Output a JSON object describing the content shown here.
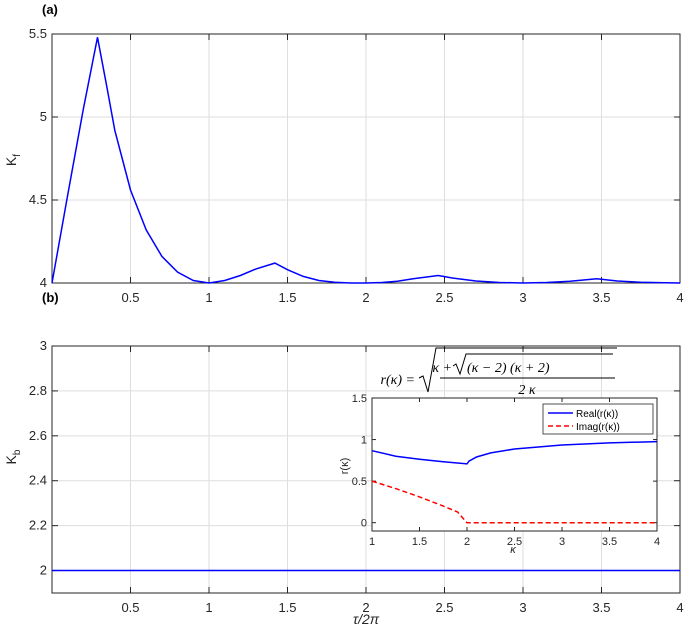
{
  "panel_a": {
    "label": "(a)",
    "chart_data": {
      "type": "line",
      "ylabel": "K",
      "ylabel_sub": "f",
      "xlim": [
        0,
        4
      ],
      "ylim": [
        4,
        5.5
      ],
      "xticks": [
        0.5,
        1,
        1.5,
        2,
        2.5,
        3,
        3.5,
        4
      ],
      "xtick_labels": [
        "0.5",
        "1",
        "1.5",
        "2",
        "2.5",
        "3",
        "3.5",
        "4"
      ],
      "yticks": [
        4,
        4.5,
        5,
        5.5
      ],
      "ytick_labels": [
        "4",
        "4.5",
        "5",
        "5.5"
      ],
      "grid": true,
      "series": [
        {
          "color": "#0000ff",
          "x": [
            0,
            0.1,
            0.2,
            0.29,
            0.35,
            0.4,
            0.5,
            0.6,
            0.7,
            0.8,
            0.9,
            1.0,
            1.1,
            1.2,
            1.3,
            1.42,
            1.5,
            1.6,
            1.7,
            1.8,
            1.9,
            2.0,
            2.1,
            2.2,
            2.3,
            2.46,
            2.55,
            2.7,
            2.85,
            3.0,
            3.15,
            3.3,
            3.47,
            3.6,
            3.75,
            3.9,
            4.0
          ],
          "y": [
            4.0,
            4.53,
            5.05,
            5.48,
            5.18,
            4.92,
            4.56,
            4.32,
            4.16,
            4.065,
            4.015,
            4.0,
            4.015,
            4.045,
            4.085,
            4.12,
            4.08,
            4.04,
            4.015,
            4.004,
            4.0,
            4.0,
            4.003,
            4.01,
            4.025,
            4.045,
            4.03,
            4.012,
            4.003,
            4.0,
            4.003,
            4.01,
            4.025,
            4.012,
            4.004,
            4.001,
            4.0
          ]
        }
      ]
    }
  },
  "panel_b": {
    "label": "(b)",
    "chart_data": {
      "type": "line",
      "ylabel": "K",
      "ylabel_sub": "b",
      "xlabel": "τ/2π",
      "xlim": [
        0,
        4
      ],
      "ylim": [
        1.9,
        3
      ],
      "xticks": [
        0.5,
        1,
        1.5,
        2,
        2.5,
        3,
        3.5,
        4
      ],
      "xtick_labels": [
        "0.5",
        "1",
        "1.5",
        "2",
        "2.5",
        "3",
        "3.5",
        "4"
      ],
      "yticks": [
        2,
        2.2,
        2.4,
        2.6,
        2.8,
        3
      ],
      "ytick_labels": [
        "2",
        "2.2",
        "2.4",
        "2.6",
        "2.8",
        "3"
      ],
      "grid": true,
      "series": [
        {
          "color": "#0000ff",
          "x": [
            0,
            4
          ],
          "y": [
            2,
            2
          ]
        }
      ]
    }
  },
  "inset": {
    "formula_lhs": "r(κ) =",
    "formula_num_a": "κ +",
    "formula_num_b": "(κ − 2) (κ + 2)",
    "formula_den": "2 κ",
    "chart_data": {
      "type": "line",
      "xlabel": "κ",
      "ylabel": "r(κ)",
      "xlim": [
        1,
        4
      ],
      "ylim": [
        -0.1,
        1.5
      ],
      "xticks": [
        1,
        1.5,
        2,
        2.5,
        3,
        3.5,
        4
      ],
      "xtick_labels": [
        "1",
        "1.5",
        "2",
        "2.5",
        "3",
        "3.5",
        "4"
      ],
      "yticks": [
        0,
        0.5,
        1,
        1.5
      ],
      "ytick_labels": [
        "0",
        "0.5",
        "1",
        "1.5"
      ],
      "legend": "top-right",
      "series": [
        {
          "name": "Real(r(κ))",
          "color": "#0000ff",
          "dash": "solid",
          "x": [
            1,
            1.25,
            1.5,
            1.75,
            2,
            2.02,
            2.1,
            2.25,
            2.5,
            3,
            3.5,
            4
          ],
          "y": [
            0.866,
            0.8,
            0.764,
            0.732,
            0.707,
            0.74,
            0.79,
            0.84,
            0.887,
            0.935,
            0.96,
            0.975
          ]
        },
        {
          "name": "Imag(r(κ))",
          "color": "#ff0000",
          "dash": "dashed",
          "x": [
            1,
            1.25,
            1.5,
            1.75,
            1.9,
            2,
            2.5,
            3,
            3.5,
            4
          ],
          "y": [
            0.5,
            0.41,
            0.31,
            0.2,
            0.13,
            0,
            0,
            0,
            0,
            0
          ]
        }
      ]
    }
  }
}
